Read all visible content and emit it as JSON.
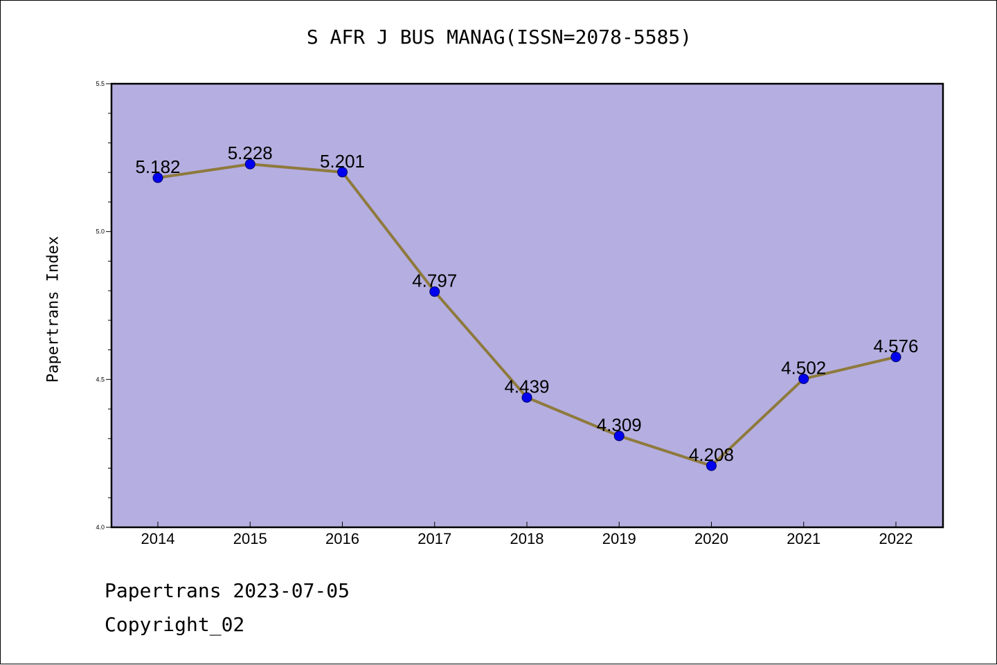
{
  "chart_data": {
    "type": "line",
    "title": "S AFR J BUS MANAG(ISSN=2078-5585)",
    "xlabel": "",
    "ylabel": "Papertrans Index",
    "categories": [
      "2014",
      "2015",
      "2016",
      "2017",
      "2018",
      "2019",
      "2020",
      "2021",
      "2022"
    ],
    "series": [
      {
        "values": [
          5.182,
          5.228,
          5.201,
          4.797,
          4.439,
          4.309,
          4.208,
          4.502,
          4.576
        ],
        "labels": [
          "5.182",
          "5.228",
          "5.201",
          "4.797",
          "4.439",
          "4.309",
          "4.208",
          "4.502",
          "4.576"
        ]
      }
    ],
    "ylim": [
      4.0,
      5.5
    ],
    "yticks": [
      "4.0",
      "4.5",
      "5.0",
      "5.5"
    ],
    "grid": false,
    "colors": {
      "plot_background": "#b5aee1",
      "line": "#8e7a3c",
      "marker": "#0000ee"
    }
  },
  "footer": {
    "date_line": "Papertrans 2023-07-05",
    "copyright": "Copyright_02"
  }
}
